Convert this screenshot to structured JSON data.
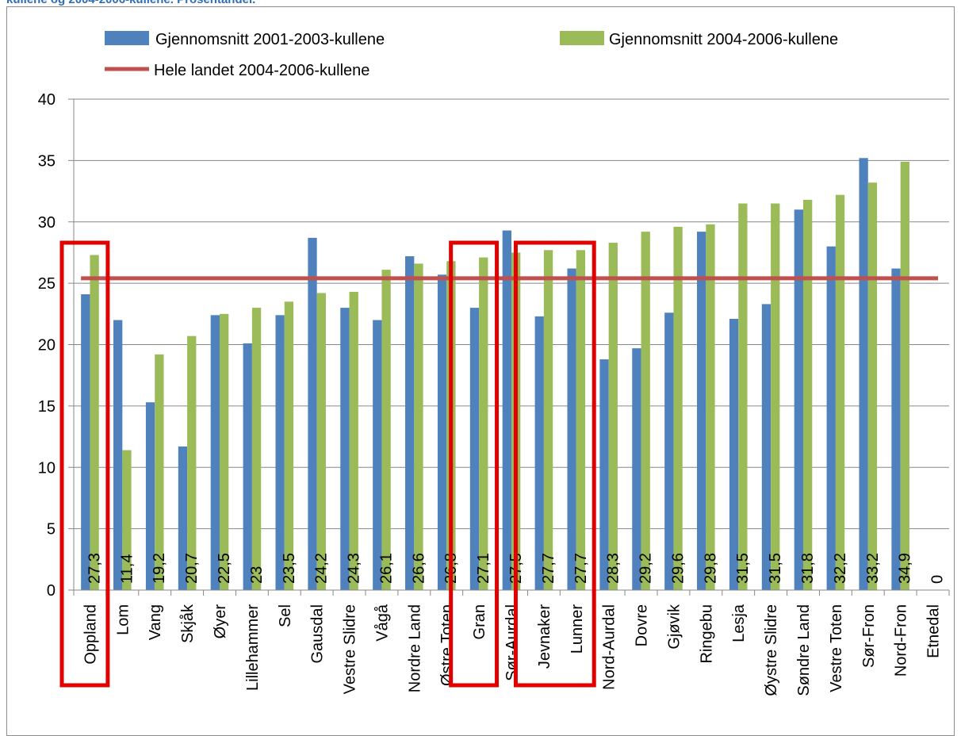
{
  "page": {
    "title": "kullene og 2004-2006-kullene. Prosentandel."
  },
  "colors": {
    "series1": "#4f81bd",
    "series2": "#9bbb59",
    "reference": "#c0504d",
    "highlight": "#e00000",
    "grid": "#878787"
  },
  "chart_data": {
    "type": "bar",
    "title": "",
    "xlabel": "",
    "ylabel": "",
    "ylim": [
      0,
      40
    ],
    "yticks": [
      0,
      5,
      10,
      15,
      20,
      25,
      30,
      35,
      40
    ],
    "grid": "horizontal",
    "legend_position": "top",
    "categories": [
      "Oppland",
      "Lom",
      "Vang",
      "Skjåk",
      "Øyer",
      "Lillehammer",
      "Sel",
      "Gausdal",
      "Vestre Slidre",
      "Vågå",
      "Nordre Land",
      "Østre Toten",
      "Gran",
      "Sør-Aurdal",
      "Jevnaker",
      "Lunner",
      "Nord-Aurdal",
      "Dovre",
      "Gjøvik",
      "Ringebu",
      "Lesja",
      "Øystre Slidre",
      "Søndre Land",
      "Vestre Toten",
      "Sør-Fron",
      "Nord-Fron",
      "Etnedal"
    ],
    "series": [
      {
        "name": "Gjennomsnitt 2001-2003-kullene",
        "values": [
          24.1,
          22.0,
          15.3,
          11.7,
          22.4,
          20.1,
          22.4,
          28.7,
          23.0,
          22.0,
          27.2,
          25.7,
          23.0,
          29.3,
          22.3,
          26.2,
          18.8,
          19.7,
          22.6,
          29.2,
          22.1,
          23.3,
          31.0,
          28.0,
          35.2,
          26.2,
          0
        ]
      },
      {
        "name": "Gjennomsnitt  2004-2006-kullene",
        "values": [
          27.3,
          11.4,
          19.2,
          20.7,
          22.5,
          23,
          23.5,
          24.2,
          24.3,
          26.1,
          26.6,
          26.8,
          27.1,
          27.5,
          27.7,
          27.7,
          28.3,
          29.2,
          29.6,
          29.8,
          31.5,
          31.5,
          31.8,
          32.2,
          33.2,
          34.9,
          0
        ],
        "labels": [
          "27,3",
          "11,4",
          "19,2",
          "20,7",
          "22,5",
          "23",
          "23,5",
          "24,2",
          "24,3",
          "26,1",
          "26,6",
          "26,8",
          "27,1",
          "27,5",
          "27,7",
          "27,7",
          "28,3",
          "29,2",
          "29,6",
          "29,8",
          "31,5",
          "31,5",
          "31,8",
          "32,2",
          "33,2",
          "34,9",
          "0"
        ]
      },
      {
        "name": "Hele landet 2004-2006-kullene",
        "type": "line",
        "value": 25.4
      }
    ],
    "highlighted_categories": [
      [
        "Oppland"
      ],
      [
        "Gran"
      ],
      [
        "Jevnaker",
        "Lunner"
      ]
    ]
  }
}
